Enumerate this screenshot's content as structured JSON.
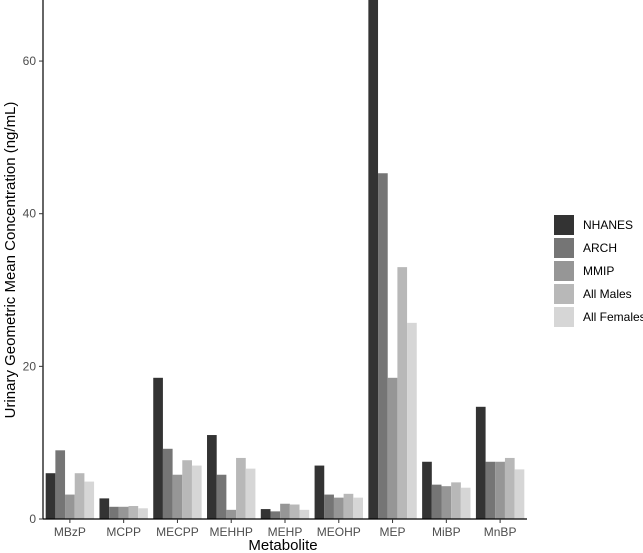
{
  "chart_data": {
    "type": "bar",
    "xlabel": "Metabolite",
    "ylabel": "Urinary Geometric Mean Concentration (ng/mL)",
    "ylim": [
      0,
      68
    ],
    "yticks": [
      0,
      20,
      40,
      60
    ],
    "grid": false,
    "legend_position": "right",
    "categories": [
      "MBzP",
      "MCPP",
      "MECPP",
      "MEHHP",
      "MEHP",
      "MEOHP",
      "MEP",
      "MiBP",
      "MnBP"
    ],
    "series": [
      {
        "name": "NHANES",
        "color": "#333333",
        "values": [
          6.0,
          2.7,
          18.5,
          11.0,
          1.3,
          7.0,
          68.0,
          7.5,
          14.7
        ]
      },
      {
        "name": "ARCH",
        "color": "#757575",
        "values": [
          9.0,
          1.6,
          9.2,
          5.8,
          1.0,
          3.2,
          45.3,
          4.5,
          7.5
        ]
      },
      {
        "name": "MMIP",
        "color": "#969696",
        "values": [
          3.2,
          1.6,
          5.8,
          1.2,
          2.0,
          2.8,
          18.5,
          4.3,
          7.5
        ]
      },
      {
        "name": "All Males",
        "color": "#b8b8b8",
        "values": [
          6.0,
          1.7,
          7.7,
          8.0,
          1.9,
          3.3,
          33.0,
          4.8,
          8.0
        ]
      },
      {
        "name": "All Females",
        "color": "#d6d6d6",
        "values": [
          4.9,
          1.4,
          7.0,
          6.6,
          1.2,
          2.8,
          25.7,
          4.1,
          6.5
        ]
      }
    ]
  }
}
